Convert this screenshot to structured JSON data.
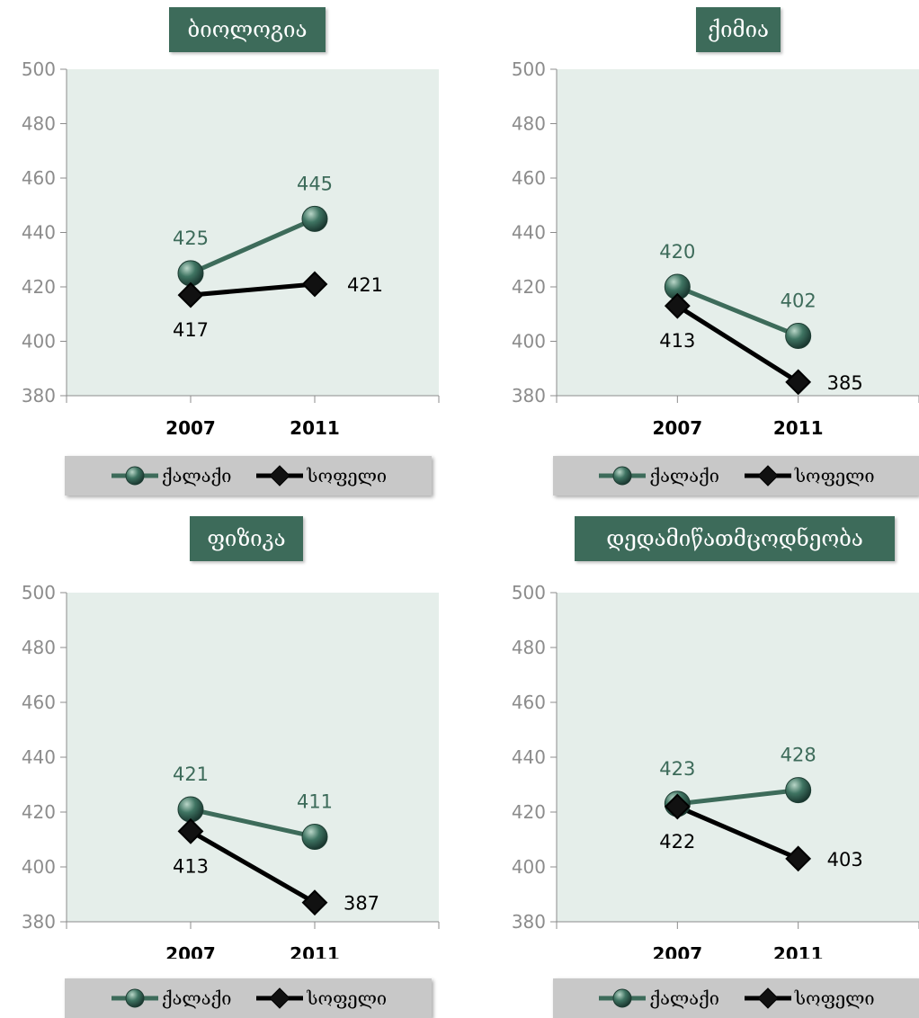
{
  "chart_data": [
    {
      "type": "line",
      "title": "ბიოლოგია",
      "categories": [
        "2007",
        "2011"
      ],
      "ylim": [
        380,
        500
      ],
      "yticks": [
        380,
        400,
        420,
        440,
        460,
        480,
        500
      ],
      "series": [
        {
          "name": "ქალაქი",
          "values": [
            425,
            445
          ],
          "color": "#3d6b5a",
          "marker": "circle"
        },
        {
          "name": "სოფელი",
          "values": [
            417,
            421
          ],
          "color": "#000000",
          "marker": "diamond"
        }
      ]
    },
    {
      "type": "line",
      "title": "ქიმია",
      "categories": [
        "2007",
        "2011"
      ],
      "ylim": [
        380,
        500
      ],
      "yticks": [
        380,
        400,
        420,
        440,
        460,
        480,
        500
      ],
      "series": [
        {
          "name": "ქალაქი",
          "values": [
            420,
            402
          ],
          "color": "#3d6b5a",
          "marker": "circle"
        },
        {
          "name": "სოფელი",
          "values": [
            413,
            385
          ],
          "color": "#000000",
          "marker": "diamond"
        }
      ]
    },
    {
      "type": "line",
      "title": "ფიზიკა",
      "categories": [
        "2007",
        "2011"
      ],
      "ylim": [
        380,
        500
      ],
      "yticks": [
        380,
        400,
        420,
        440,
        460,
        480,
        500
      ],
      "series": [
        {
          "name": "ქალაქი",
          "values": [
            421,
            411
          ],
          "color": "#3d6b5a",
          "marker": "circle"
        },
        {
          "name": "სოფელი",
          "values": [
            413,
            387
          ],
          "color": "#000000",
          "marker": "diamond"
        }
      ]
    },
    {
      "type": "line",
      "title": "დედამიწათმცოდნეობა",
      "categories": [
        "2007",
        "2011"
      ],
      "ylim": [
        380,
        500
      ],
      "yticks": [
        380,
        400,
        420,
        440,
        460,
        480,
        500
      ],
      "series": [
        {
          "name": "ქალაქი",
          "values": [
            423,
            428
          ],
          "color": "#3d6b5a",
          "marker": "circle"
        },
        {
          "name": "სოფელი",
          "values": [
            422,
            403
          ],
          "color": "#000000",
          "marker": "diamond"
        }
      ]
    }
  ]
}
